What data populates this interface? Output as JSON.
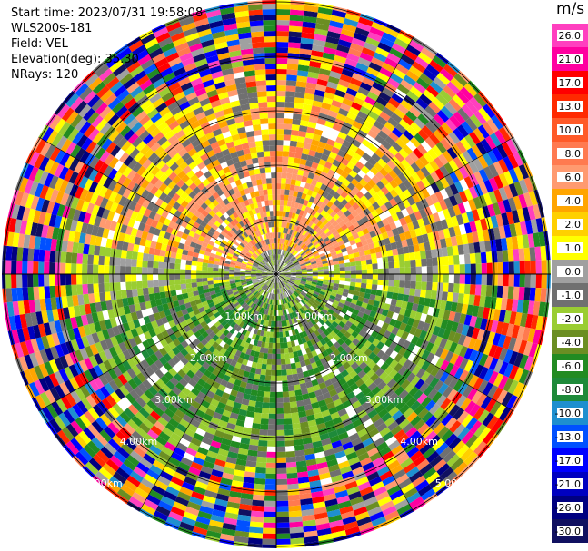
{
  "header": {
    "start_time": "Start time: 2023/07/31 19:58:08",
    "instrument": "WLS200s-181",
    "field": "Field: VEL",
    "elevation": "Elevation(deg): 35.30",
    "nrays": "NRays: 120"
  },
  "colorbar": {
    "unit": "m/s",
    "ticks": [
      "26.0",
      "21.0",
      "17.0",
      "13.0",
      "10.0",
      "8.0",
      "6.0",
      "4.0",
      "2.0",
      "1.0",
      "0.0",
      "-1.0",
      "-2.0",
      "-4.0",
      "-6.0",
      "-8.0",
      "-10.0",
      "-13.0",
      "-17.0",
      "-21.0",
      "-26.0",
      "-30.0"
    ],
    "colors": [
      "#ff3fbf",
      "#ff00a0",
      "#ff0000",
      "#ff2a00",
      "#ff5a28",
      "#ff7a50",
      "#ff9a70",
      "#ffa500",
      "#ffd000",
      "#ffff00",
      "#a0a0a0",
      "#707070",
      "#9acd32",
      "#6b8e23",
      "#228b22",
      "#1e8a3a",
      "#1e8fcf",
      "#0050ff",
      "#0000ff",
      "#0000c0",
      "#000080",
      "#101060"
    ]
  },
  "chart_data": {
    "type": "heatmap",
    "title": "",
    "field": "VEL",
    "unit": "m/s",
    "nrays": 120,
    "elevation_deg": 35.3,
    "range_rings_km": [
      "1.00km",
      "2.00km",
      "3.00km",
      "4.00km",
      "5.00km"
    ],
    "value_range": [
      -30.0,
      26.0
    ],
    "pattern": {
      "north_sector_positive_velocity": "2.0 to 8.0 m/s (yellow/orange/salmon)",
      "south_sector_negative_velocity": "-1.0 to -6.0 m/s (olive/green)",
      "beyond_approx_4km": "noise (full color range)"
    }
  }
}
